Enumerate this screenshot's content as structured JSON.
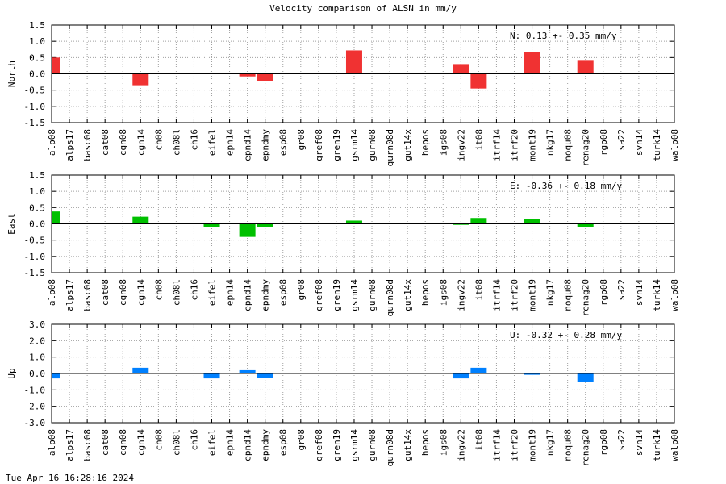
{
  "title": "Velocity comparison of ALSN in mm/y",
  "timestamp": "Tue Apr 16 16:28:16 2024",
  "chart_data": {
    "type": "bar",
    "title": "Velocity comparison of ALSN in mm/y",
    "categories": [
      "alp08",
      "alps17",
      "basc08",
      "cat08",
      "cgn08",
      "cgn14",
      "ch08",
      "ch08l",
      "ch16",
      "eifel",
      "epn14",
      "epnd14",
      "epndmy",
      "esp08",
      "gr08",
      "gref08",
      "gren19",
      "gsrm14",
      "gurn08",
      "gurn08d",
      "gut14x",
      "hepos",
      "igs08",
      "ingv22",
      "it08",
      "itrf14",
      "itrf20",
      "mont19",
      "nkg17",
      "noqu08",
      "renag20",
      "rgp08",
      "sa22",
      "svn14",
      "turk14",
      "walp08"
    ],
    "grid": true,
    "panels": [
      {
        "ylabel": "North",
        "ylim": [
          -1.5,
          1.5
        ],
        "yticks": [
          "-1.5",
          "-1.0",
          "-0.5",
          "0.0",
          "0.5",
          "1.0",
          "1.5"
        ],
        "color": "#f03232",
        "annotation": "N:   0.13 +-  0.35 mm/y",
        "values": [
          0.5,
          0,
          0,
          0,
          0,
          -0.35,
          0,
          0,
          0,
          0,
          0,
          -0.08,
          -0.22,
          0,
          0,
          0,
          0,
          0.72,
          0,
          0,
          0,
          0,
          0,
          0.3,
          -0.45,
          0,
          0,
          0.68,
          0,
          0,
          0.4,
          0,
          0,
          0,
          0,
          0
        ]
      },
      {
        "ylabel": "East",
        "ylim": [
          -1.5,
          1.5
        ],
        "yticks": [
          "-1.5",
          "-1.0",
          "-0.5",
          "0.0",
          "0.5",
          "1.0",
          "1.5"
        ],
        "color": "#00c000",
        "annotation": "E:  -0.36 +-  0.18 mm/y",
        "values": [
          0.38,
          0,
          0,
          0,
          0,
          0.22,
          0,
          0,
          0,
          -0.1,
          0,
          -0.4,
          -0.1,
          0,
          0,
          0,
          0,
          0.1,
          0,
          0,
          0,
          0,
          0,
          -0.03,
          0.18,
          0,
          0,
          0.15,
          0,
          0,
          -0.1,
          0,
          0,
          0,
          0,
          0
        ]
      },
      {
        "ylabel": "Up",
        "ylim": [
          -3.0,
          3.0
        ],
        "yticks": [
          "-3.0",
          "-2.0",
          "-1.0",
          "0.0",
          "1.0",
          "2.0",
          "3.0"
        ],
        "color": "#0080ff",
        "annotation": "U:  -0.32 +-  0.28 mm/y",
        "values": [
          -0.3,
          0,
          0,
          0,
          0,
          0.35,
          0,
          0,
          0,
          -0.3,
          0,
          0.2,
          -0.25,
          0,
          0,
          0,
          0,
          0,
          0,
          0,
          0,
          0,
          0,
          -0.3,
          0.35,
          0,
          0,
          -0.08,
          0,
          0,
          -0.5,
          0,
          0,
          0,
          0,
          0
        ]
      }
    ]
  }
}
